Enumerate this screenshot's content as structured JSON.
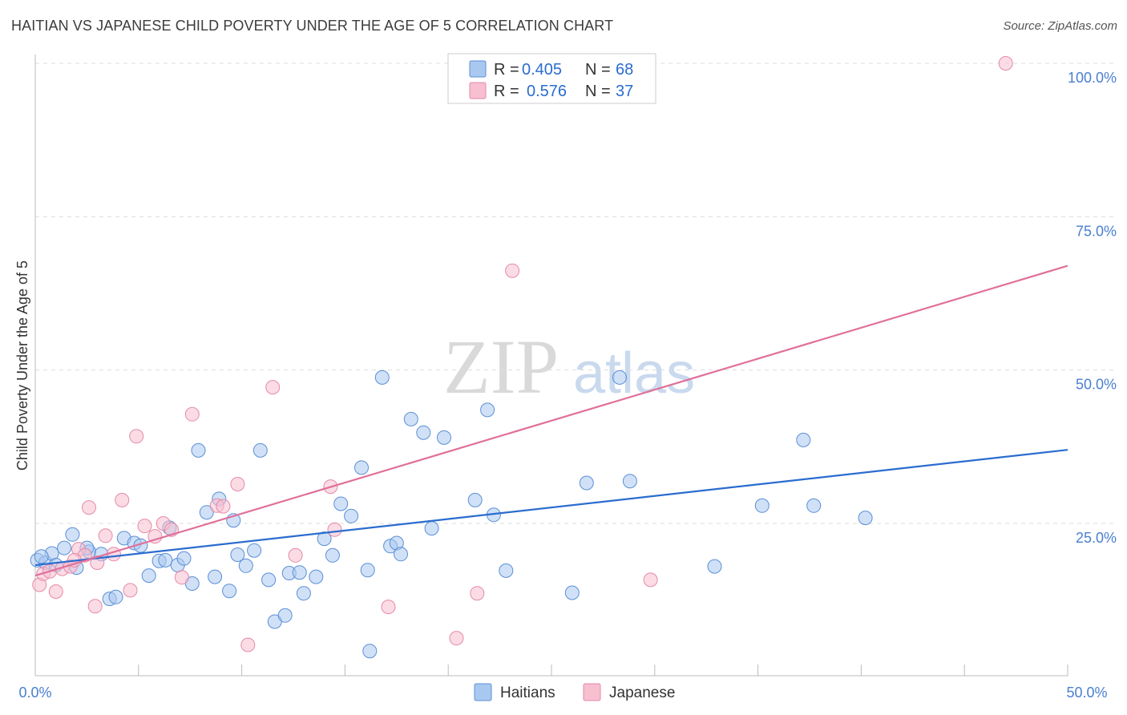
{
  "title": "HAITIAN VS JAPANESE CHILD POVERTY UNDER THE AGE OF 5 CORRELATION CHART",
  "source": "Source: ZipAtlas.com",
  "watermark": {
    "zip": "ZIP",
    "atlas": "atlas"
  },
  "legend_top": {
    "r_label": "R =",
    "n_label": "N =",
    "rows": [
      {
        "series": "Haitians",
        "r": "0.405",
        "n": "68"
      },
      {
        "series": "Japanese",
        "r": "0.576",
        "n": "37"
      }
    ]
  },
  "legend_bottom": [
    "Haitians",
    "Japanese"
  ],
  "colors": {
    "haitians_fill": "#a9c8f0",
    "haitians_stroke": "#5b8fd6",
    "haitians_line": "#2a6ccf",
    "japanese_fill": "#f7bfd0",
    "japanese_stroke": "#e58aa8",
    "japanese_line": "#e0709a",
    "tick_text": "#4a7fd0",
    "grid": "#dddddd"
  },
  "chart_data": {
    "type": "scatter",
    "title": "HAITIAN VS JAPANESE CHILD POVERTY UNDER THE AGE OF 5 CORRELATION CHART",
    "xlabel": "",
    "ylabel": "Child Poverty Under the Age of 5",
    "xlim": [
      0,
      50
    ],
    "ylim": [
      0,
      103
    ],
    "x_tick_labels": [
      "0.0%",
      "50.0%"
    ],
    "y_ticks": [
      {
        "value": 25,
        "label": "25.0%"
      },
      {
        "value": 50,
        "label": "50.0%"
      },
      {
        "value": 75,
        "label": "75.0%"
      },
      {
        "value": 100,
        "label": "100.0%"
      }
    ],
    "grid": true,
    "series": [
      {
        "name": "Haitians",
        "r": 0.405,
        "n": 68,
        "trend": {
          "x": [
            0,
            50
          ],
          "y": [
            18.2,
            37.0
          ]
        },
        "points": [
          [
            0.1,
            19.0
          ],
          [
            0.5,
            18.6
          ],
          [
            0.8,
            20.1
          ],
          [
            1.0,
            18.2
          ],
          [
            1.4,
            21.0
          ],
          [
            1.8,
            23.2
          ],
          [
            2.0,
            17.8
          ],
          [
            2.6,
            20.4
          ],
          [
            3.2,
            20.0
          ],
          [
            3.6,
            12.7
          ],
          [
            3.9,
            13.0
          ],
          [
            4.3,
            22.6
          ],
          [
            4.8,
            21.8
          ],
          [
            5.1,
            21.4
          ],
          [
            5.5,
            16.5
          ],
          [
            6.0,
            18.9
          ],
          [
            6.3,
            19.0
          ],
          [
            6.5,
            24.3
          ],
          [
            6.9,
            18.2
          ],
          [
            7.2,
            19.3
          ],
          [
            7.6,
            15.2
          ],
          [
            7.9,
            36.9
          ],
          [
            8.3,
            26.8
          ],
          [
            8.7,
            16.3
          ],
          [
            8.9,
            29.0
          ],
          [
            9.4,
            14.0
          ],
          [
            9.6,
            25.5
          ],
          [
            9.8,
            19.9
          ],
          [
            10.2,
            18.1
          ],
          [
            10.6,
            20.6
          ],
          [
            10.9,
            36.9
          ],
          [
            11.3,
            15.8
          ],
          [
            11.6,
            9.0
          ],
          [
            12.1,
            10.0
          ],
          [
            12.3,
            16.9
          ],
          [
            12.8,
            17.0
          ],
          [
            13.0,
            13.6
          ],
          [
            13.6,
            16.3
          ],
          [
            14.0,
            22.5
          ],
          [
            14.4,
            19.8
          ],
          [
            14.8,
            28.2
          ],
          [
            15.3,
            26.2
          ],
          [
            15.8,
            34.1
          ],
          [
            16.1,
            17.4
          ],
          [
            16.2,
            4.2
          ],
          [
            16.8,
            48.8
          ],
          [
            17.2,
            21.3
          ],
          [
            17.5,
            21.8
          ],
          [
            17.7,
            20.0
          ],
          [
            18.2,
            42.0
          ],
          [
            18.8,
            39.8
          ],
          [
            19.2,
            24.2
          ],
          [
            19.8,
            39.0
          ],
          [
            21.3,
            28.8
          ],
          [
            21.9,
            43.5
          ],
          [
            22.2,
            26.4
          ],
          [
            22.8,
            17.3
          ],
          [
            26.0,
            13.7
          ],
          [
            26.7,
            31.6
          ],
          [
            28.3,
            48.8
          ],
          [
            28.8,
            31.9
          ],
          [
            32.9,
            18.0
          ],
          [
            35.2,
            27.9
          ],
          [
            37.2,
            38.6
          ],
          [
            37.7,
            27.9
          ],
          [
            40.2,
            25.9
          ],
          [
            0.3,
            19.6
          ],
          [
            2.5,
            21.0
          ]
        ]
      },
      {
        "name": "Japanese",
        "r": 0.576,
        "n": 37,
        "trend": {
          "x": [
            0,
            50
          ],
          "y": [
            16.5,
            67.0
          ]
        },
        "points": [
          [
            0.2,
            15.0
          ],
          [
            0.4,
            16.8
          ],
          [
            0.7,
            17.2
          ],
          [
            1.0,
            13.9
          ],
          [
            1.3,
            17.6
          ],
          [
            1.7,
            18.0
          ],
          [
            2.1,
            20.8
          ],
          [
            2.4,
            19.8
          ],
          [
            2.6,
            27.6
          ],
          [
            2.9,
            11.5
          ],
          [
            3.4,
            23.0
          ],
          [
            3.8,
            20.0
          ],
          [
            4.2,
            28.8
          ],
          [
            4.6,
            14.1
          ],
          [
            4.9,
            39.2
          ],
          [
            5.3,
            24.6
          ],
          [
            5.8,
            22.9
          ],
          [
            6.2,
            25.0
          ],
          [
            6.6,
            24.0
          ],
          [
            7.1,
            16.2
          ],
          [
            7.6,
            42.8
          ],
          [
            8.8,
            27.9
          ],
          [
            9.1,
            27.8
          ],
          [
            9.8,
            31.4
          ],
          [
            10.3,
            5.2
          ],
          [
            11.5,
            47.2
          ],
          [
            12.6,
            19.8
          ],
          [
            14.5,
            24.0
          ],
          [
            14.3,
            31.0
          ],
          [
            17.1,
            11.4
          ],
          [
            20.4,
            6.3
          ],
          [
            21.4,
            13.6
          ],
          [
            23.1,
            66.2
          ],
          [
            29.8,
            15.8
          ],
          [
            47.0,
            100.0
          ],
          [
            3.0,
            18.6
          ],
          [
            1.9,
            19.0
          ]
        ]
      }
    ]
  }
}
